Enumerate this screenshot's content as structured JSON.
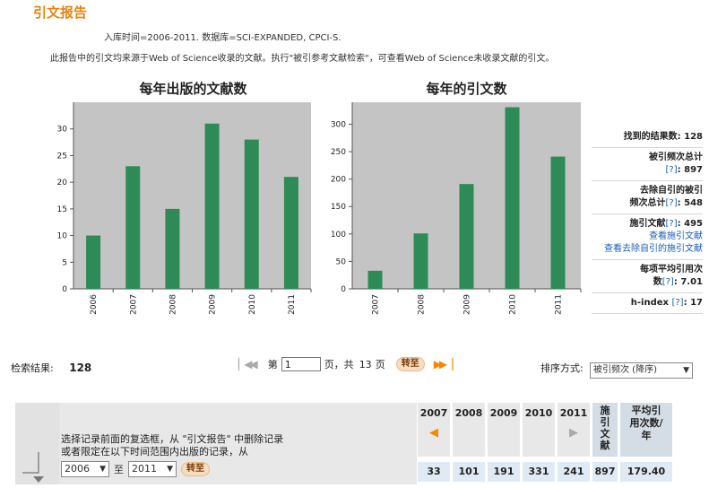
{
  "page": {
    "title": "引文报告",
    "meta_line1": "入库时间=2006-2011. 数据库=SCI-EXPANDED, CPCI-S.",
    "meta_line2": "此报告中的引文均来源于Web of Science收录的文献。执行\"被引参考文献检索\"，可查看Web of Science未收录文献的引文。"
  },
  "chart_data": [
    {
      "type": "bar",
      "title": "每年出版的文献数",
      "categories": [
        "2006",
        "2007",
        "2008",
        "2009",
        "2010",
        "2011"
      ],
      "values": [
        10,
        23,
        15,
        31,
        28,
        21
      ],
      "ylim": [
        0,
        35
      ],
      "yticks": [
        0,
        5,
        10,
        15,
        20,
        25,
        30
      ],
      "xlabel": "",
      "ylabel": "",
      "grid": false,
      "bar_color": "#2e8b57",
      "plot_bg": "#c4c4c4"
    },
    {
      "type": "bar",
      "title": "每年的引文数",
      "categories": [
        "2007",
        "2008",
        "2009",
        "2010",
        "2011"
      ],
      "values": [
        33,
        101,
        191,
        331,
        241
      ],
      "ylim": [
        0,
        340
      ],
      "yticks": [
        0,
        50,
        100,
        150,
        200,
        250,
        300
      ],
      "xlabel": "",
      "ylabel": "",
      "grid": false,
      "bar_color": "#2e8b57",
      "plot_bg": "#c4c4c4"
    }
  ],
  "stats": {
    "found_label": "找到的结果数:",
    "found_value": "128",
    "times_cited_label": "被引频次总计",
    "times_cited_value": "897",
    "without_self_label1": "去除自引的被引",
    "without_self_label2": "频次总计",
    "without_self_value": "548",
    "citing_label": "施引文献",
    "citing_value": "495",
    "view_citing": "查看施引文献",
    "view_citing_noself": "查看去除自引的施引文献",
    "avg_label1": "每项平均引用次",
    "avg_label2": "数",
    "avg_value": "7.01",
    "hindex_label": "h-index",
    "hindex_value": "17",
    "help": "[?]",
    "colon": ":"
  },
  "pager": {
    "results_label": "检索结果:",
    "results_value": "128",
    "page_prefix": "第",
    "page_value": "1",
    "page_suffix": "页，共",
    "total_pages": "13",
    "pages_unit": "页",
    "go_label": "转至",
    "sort_label": "排序方式:",
    "sort_value": "被引频次 (降序)"
  },
  "bottom": {
    "instruction_line1": "选择记录前面的复选框，从 \"引文报告\" 中删除记录",
    "instruction_line2": "或者限定在以下时间范围内出版的记录，从",
    "from_year": "2006",
    "to_label": "至",
    "to_year": "2011",
    "go_label": "转至",
    "years": [
      "2007",
      "2008",
      "2009",
      "2010",
      "2011"
    ],
    "year_values": [
      "33",
      "101",
      "191",
      "331",
      "241"
    ],
    "total_label": "施引文献",
    "total_value": "897",
    "avg_label": "平均引用次数/年",
    "avg_value": "179.40",
    "prev_arrow_color": "#f08a00",
    "next_arrow_color": "#aaaaaa"
  }
}
